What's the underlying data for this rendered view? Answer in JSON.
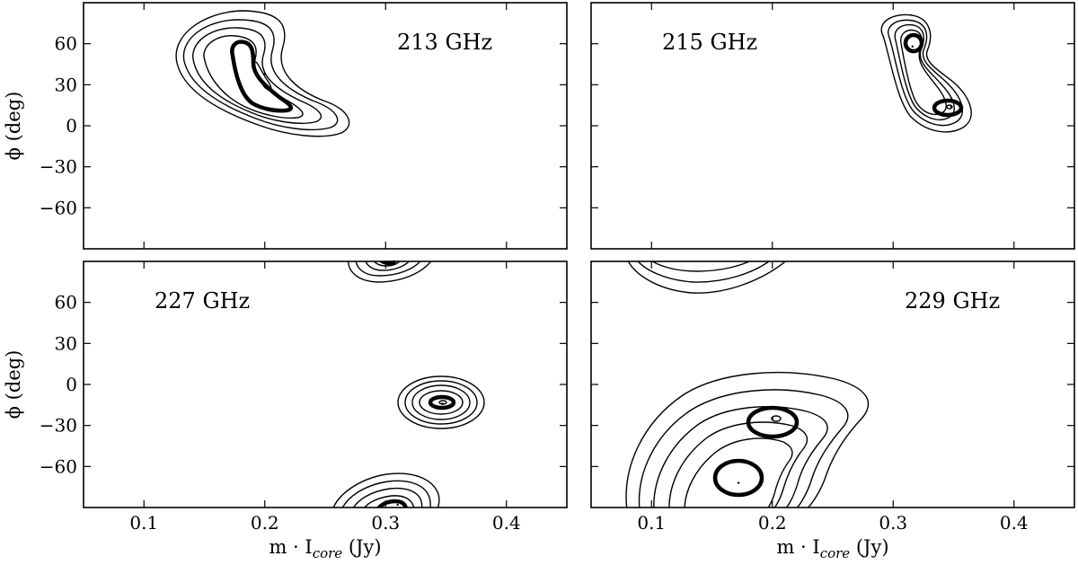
{
  "chart_data": [
    {
      "type": "contour",
      "label": "213 GHz",
      "xlim": [
        0.05,
        0.45
      ],
      "ylim": [
        -90,
        90
      ],
      "xticks": [
        "0.1",
        "0.2",
        "0.3",
        "0.4"
      ],
      "yticks": [
        "60",
        "30",
        "0",
        "−30",
        "−60"
      ],
      "ylabel": "ϕ (deg)",
      "xlabel": "",
      "peaks": [
        {
          "x": 0.2,
          "y": 38
        }
      ]
    },
    {
      "type": "contour",
      "label": "215 GHz",
      "xlim": [
        0.05,
        0.45
      ],
      "ylim": [
        -90,
        90
      ],
      "xticks": [
        "0.1",
        "0.2",
        "0.3",
        "0.4"
      ],
      "yticks": [
        "60",
        "30",
        "0",
        "−30",
        "−60"
      ],
      "ylabel": "",
      "xlabel": "",
      "peaks": [
        {
          "x": 0.316,
          "y": 58
        },
        {
          "x": 0.348,
          "y": 14
        }
      ]
    },
    {
      "type": "contour",
      "label": "227 GHz",
      "xlim": [
        0.05,
        0.45
      ],
      "ylim": [
        -90,
        90
      ],
      "xticks": [
        "0.1",
        "0.2",
        "0.3",
        "0.4"
      ],
      "yticks": [
        "60",
        "30",
        "0",
        "−30",
        "−60"
      ],
      "ylabel": "ϕ (deg)",
      "xlabel": "m · I",
      "xlabel_sub": "core",
      "xlabel_unit": " (Jy)",
      "peaks": [
        {
          "x": 0.307,
          "y": 90
        },
        {
          "x": 0.347,
          "y": -14
        },
        {
          "x": 0.31,
          "y": -88
        }
      ]
    },
    {
      "type": "contour",
      "label": "229 GHz",
      "xlim": [
        0.05,
        0.45
      ],
      "ylim": [
        -90,
        90
      ],
      "xticks": [
        "0.1",
        "0.2",
        "0.3",
        "0.4"
      ],
      "yticks": [
        "60",
        "30",
        "0",
        "−30",
        "−60"
      ],
      "ylabel": "",
      "xlabel": "m · I",
      "xlabel_sub": "core",
      "xlabel_unit": " (Jy)",
      "peaks": [
        {
          "x": 0.16,
          "y": 95
        },
        {
          "x": 0.2,
          "y": -25
        },
        {
          "x": 0.172,
          "y": -72
        }
      ]
    }
  ]
}
